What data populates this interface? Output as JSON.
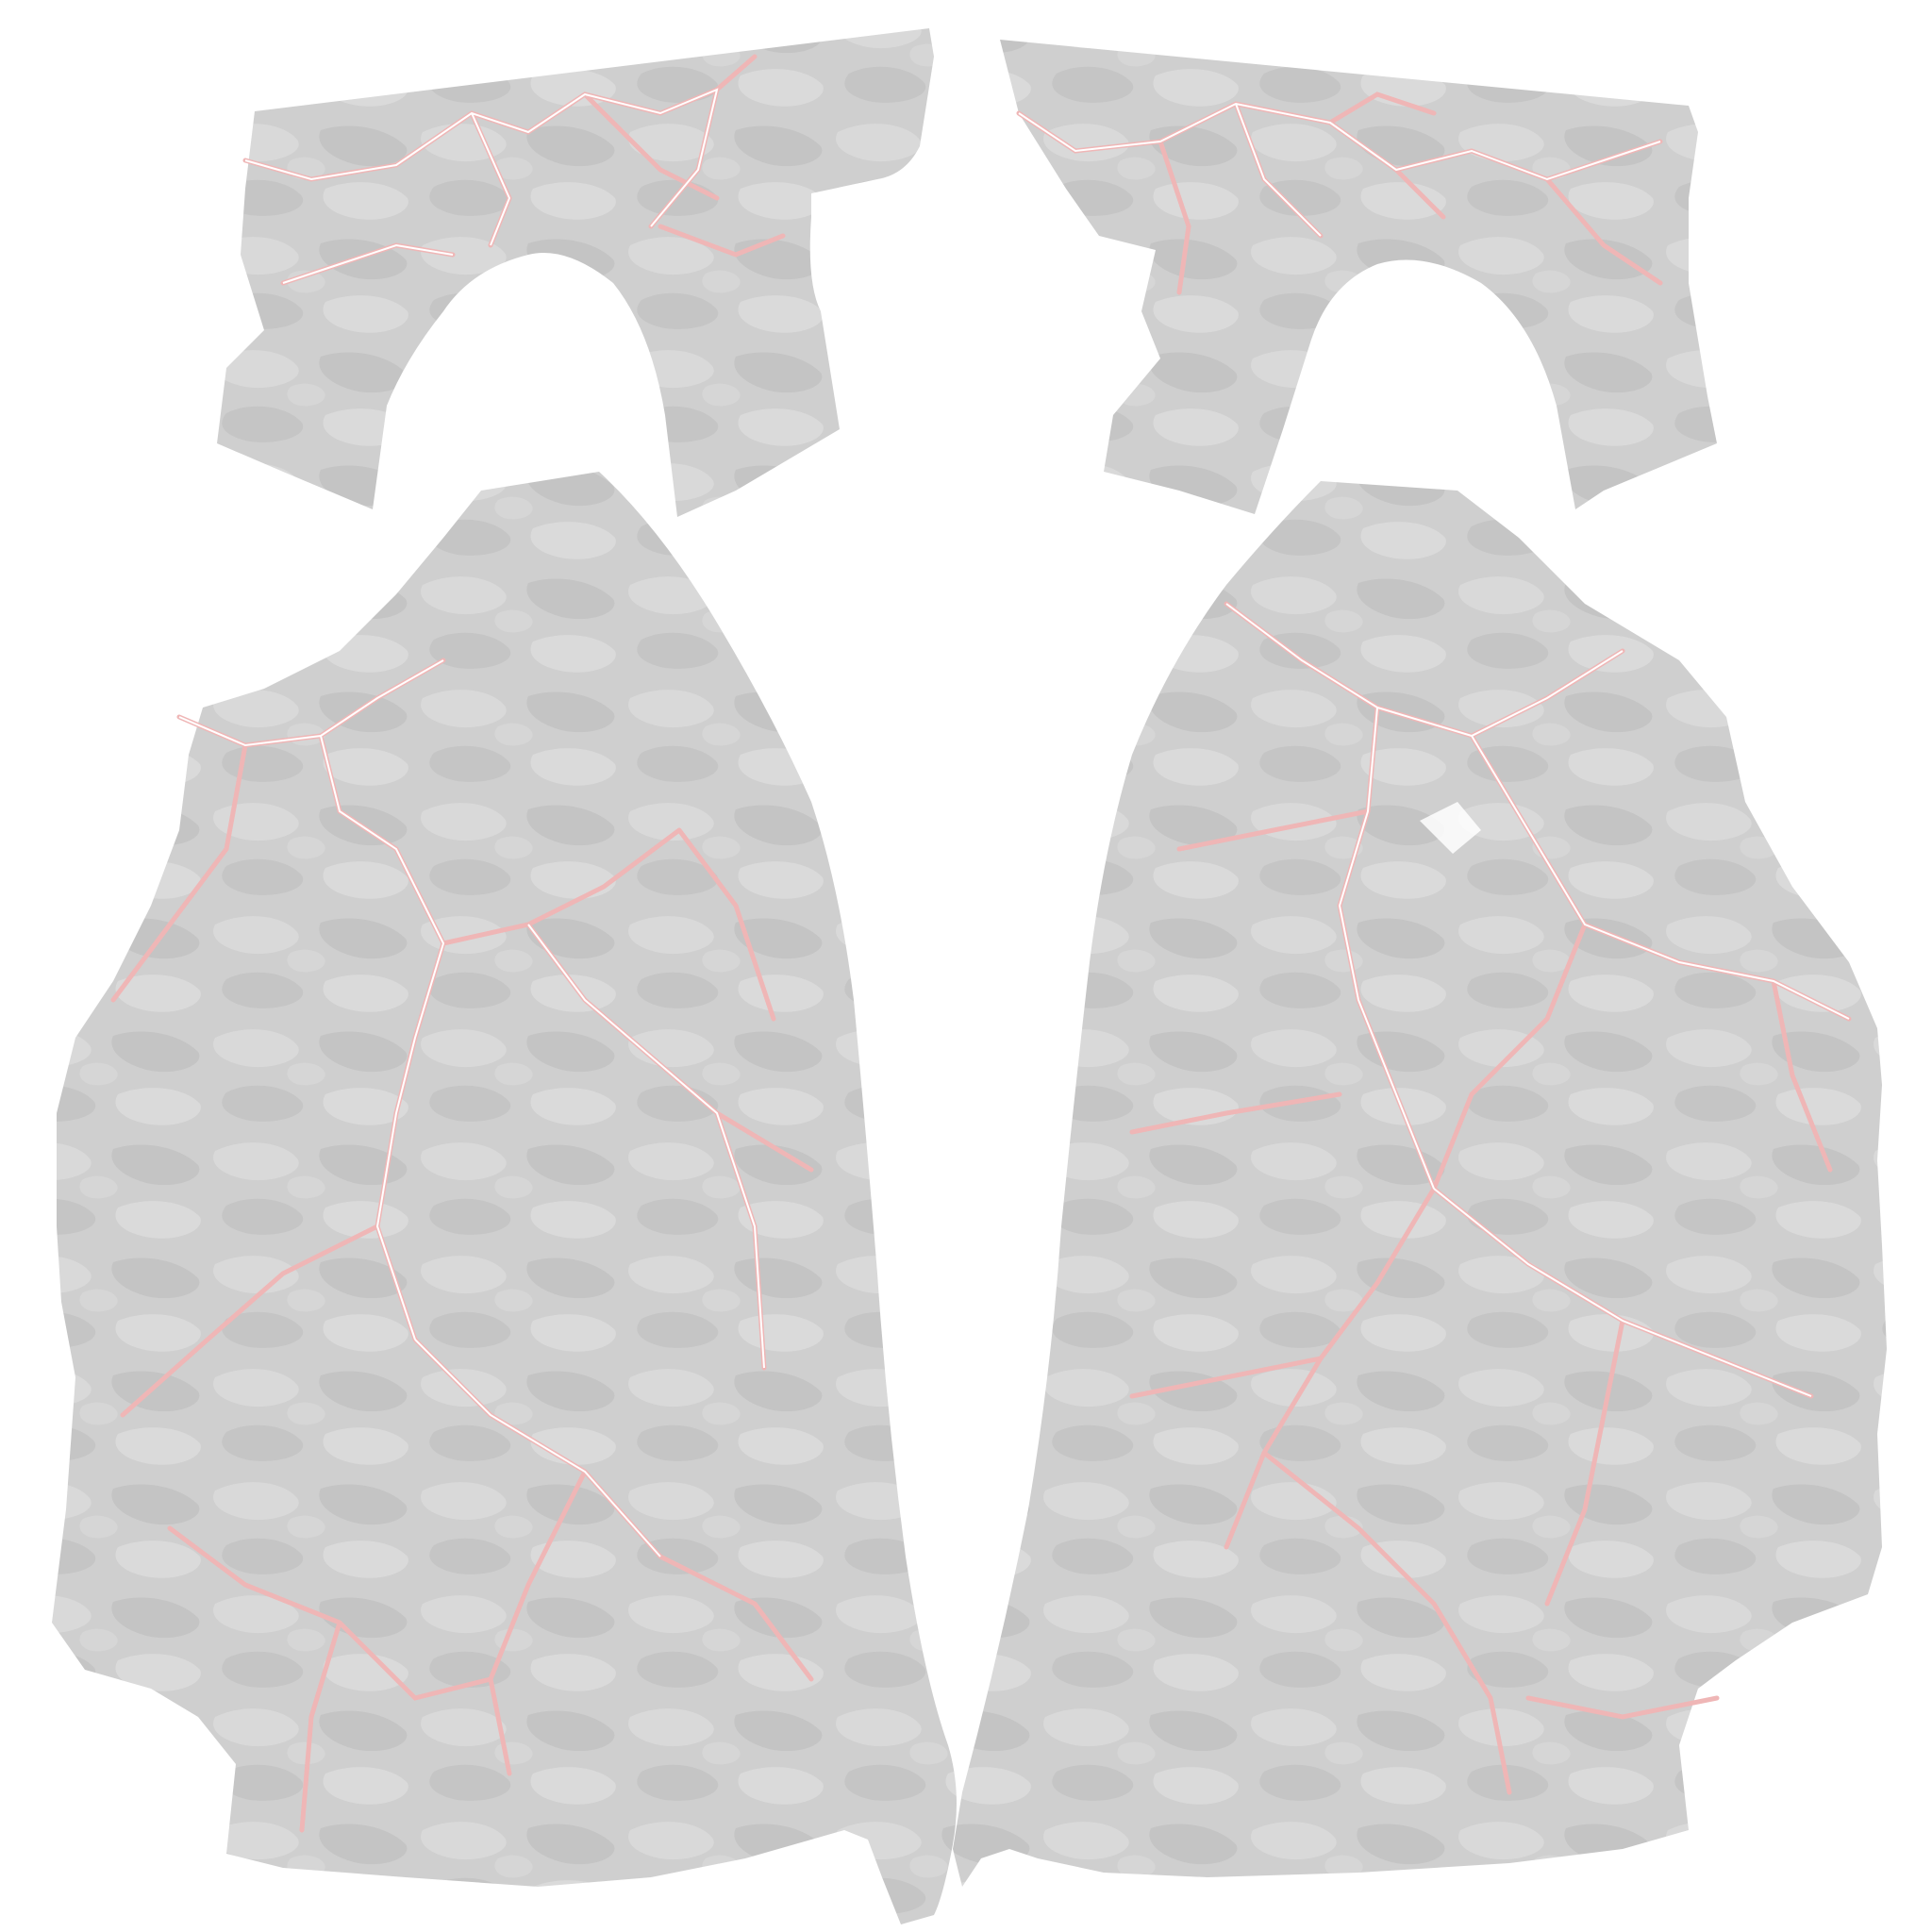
{
  "texture": {
    "background": "#ffffff",
    "base_gray": "#cdcdcd",
    "dark_gray": "#c2c2c2",
    "light_gray": "#d8d8d8",
    "crack_color": "#e8a4a4",
    "crack_highlight": "#ffffff"
  }
}
